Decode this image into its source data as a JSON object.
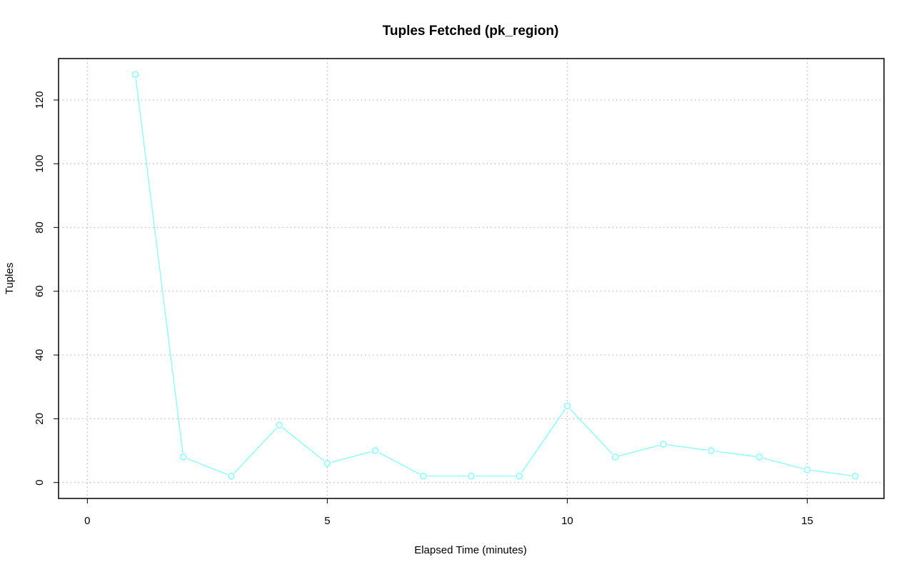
{
  "chart_data": {
    "type": "line",
    "title": "Tuples Fetched (pk_region)",
    "xlabel": "Elapsed Time (minutes)",
    "ylabel": "Tuples",
    "xlim": [
      -0.6,
      16.6
    ],
    "ylim": [
      -5,
      133
    ],
    "x_ticks": [
      0,
      5,
      10,
      15
    ],
    "x_tick_labels": [
      "0",
      "5",
      "10",
      "15"
    ],
    "y_ticks": [
      0,
      20,
      40,
      60,
      80,
      100,
      120
    ],
    "y_tick_labels": [
      "0",
      "20",
      "40",
      "60",
      "80",
      "100",
      "120"
    ],
    "grid": true,
    "legend": "none",
    "series": [
      {
        "color": "#7fffff",
        "x": [
          1,
          2,
          3,
          4,
          5,
          6,
          7,
          8,
          9,
          10,
          11,
          12,
          13,
          14,
          15,
          16
        ],
        "values": [
          128,
          8,
          2,
          18,
          6,
          10,
          2,
          2,
          2,
          24,
          8,
          12,
          10,
          8,
          4,
          2
        ]
      }
    ]
  }
}
